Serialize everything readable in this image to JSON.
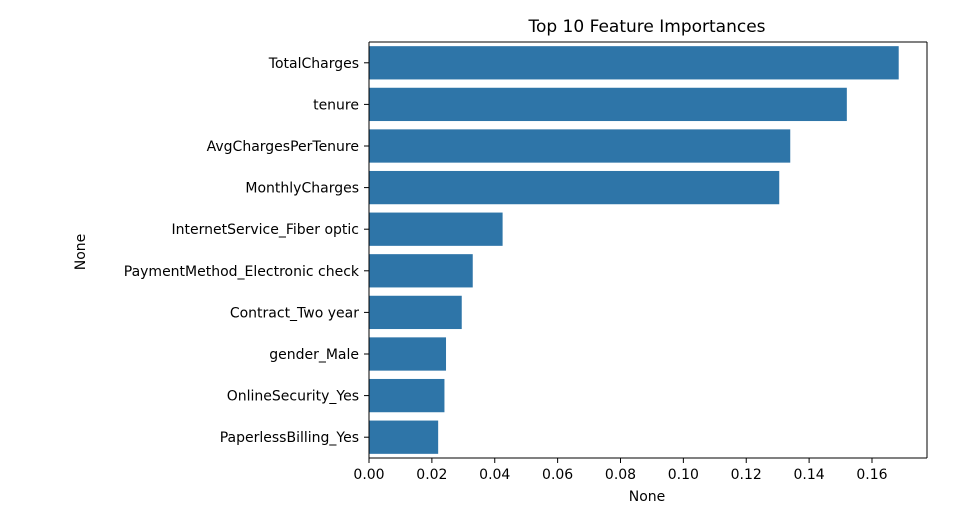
{
  "chart_data": {
    "type": "bar",
    "orientation": "horizontal",
    "title": "Top 10 Feature Importances",
    "xlabel": "None",
    "ylabel": "None",
    "categories": [
      "TotalCharges",
      "tenure",
      "AvgChargesPerTenure",
      "MonthlyCharges",
      "InternetService_Fiber optic",
      "PaymentMethod_Electronic check",
      "Contract_Two year",
      "gender_Male",
      "OnlineSecurity_Yes",
      "PaperlessBilling_Yes"
    ],
    "values": [
      0.1685,
      0.152,
      0.134,
      0.1305,
      0.0425,
      0.033,
      0.0295,
      0.0245,
      0.024,
      0.022
    ],
    "xlim": [
      0,
      0.1775
    ],
    "xticks": [
      0.0,
      0.02,
      0.04,
      0.06,
      0.08,
      0.1,
      0.12,
      0.14,
      0.16
    ],
    "xtick_labels": [
      "0.00",
      "0.02",
      "0.04",
      "0.06",
      "0.08",
      "0.10",
      "0.12",
      "0.14",
      "0.16"
    ],
    "grid": false,
    "bar_color": "#2e75a8"
  }
}
